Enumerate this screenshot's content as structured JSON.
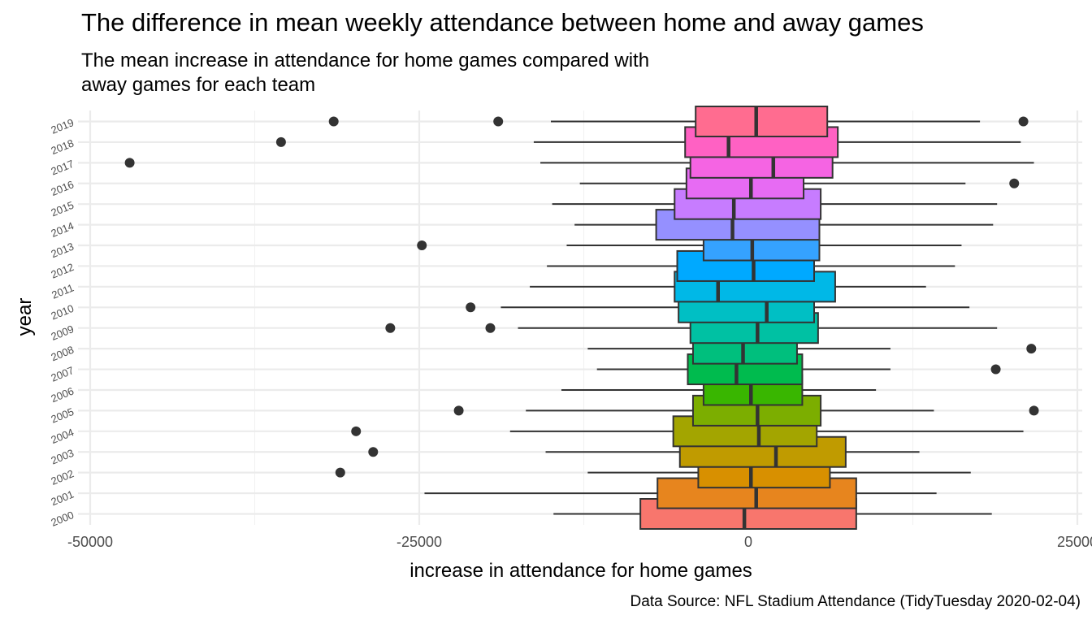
{
  "title": "The difference in mean weekly attendance between home and away games",
  "subtitle": "The mean increase in attendance for home games compared with\n away games for each team",
  "caption": "Data Source: NFL Stadium Attendance (TidyTuesday 2020-02-04)",
  "chart_data": {
    "type": "boxplot",
    "orientation": "horizontal",
    "xlabel": "increase in attendance for home games",
    "ylabel": "year",
    "xlim": [
      -50000,
      25000
    ],
    "x_ticks": [
      -50000,
      -25000,
      0,
      25000
    ],
    "x_tick_labels": [
      "-50000",
      "-25000",
      "0",
      "25000"
    ],
    "grid": true,
    "legend": "none",
    "series": [
      {
        "year": "2000",
        "min": -14800,
        "q1": -8200,
        "median": -300,
        "q3": 8200,
        "max": 18500,
        "outliers": [],
        "color": "#F8766D"
      },
      {
        "year": "2001",
        "min": -24600,
        "q1": -6900,
        "median": 600,
        "q3": 8200,
        "max": 14300,
        "outliers": [],
        "color": "#E7851E"
      },
      {
        "year": "2002",
        "min": -12200,
        "q1": -3800,
        "median": 200,
        "q3": 6200,
        "max": 16900,
        "outliers": [
          -31000
        ],
        "color": "#D89000"
      },
      {
        "year": "2003",
        "min": -15400,
        "q1": -5200,
        "median": 2100,
        "q3": 7400,
        "max": 13000,
        "outliers": [
          -28500
        ],
        "color": "#C09B00"
      },
      {
        "year": "2004",
        "min": -18100,
        "q1": -5700,
        "median": 800,
        "q3": 5200,
        "max": 20900,
        "outliers": [
          -29800
        ],
        "color": "#A3A500"
      },
      {
        "year": "2005",
        "min": -16900,
        "q1": -4200,
        "median": 700,
        "q3": 5500,
        "max": 14100,
        "outliers": [
          -22000,
          21700
        ],
        "color": "#7CAE00"
      },
      {
        "year": "2006",
        "min": -14200,
        "q1": -3400,
        "median": 200,
        "q3": 4100,
        "max": 9700,
        "outliers": [],
        "color": "#39B600"
      },
      {
        "year": "2007",
        "min": -11500,
        "q1": -4600,
        "median": -900,
        "q3": 4100,
        "max": 10800,
        "outliers": [
          18800
        ],
        "color": "#00BB4E"
      },
      {
        "year": "2008",
        "min": -12200,
        "q1": -4200,
        "median": -400,
        "q3": 3700,
        "max": 10800,
        "outliers": [
          21500
        ],
        "color": "#00BF7D"
      },
      {
        "year": "2009",
        "min": -17500,
        "q1": -4400,
        "median": 700,
        "q3": 5300,
        "max": 18900,
        "outliers": [
          -27200,
          -19600
        ],
        "color": "#00C1A3"
      },
      {
        "year": "2010",
        "min": -18800,
        "q1": -5300,
        "median": 1400,
        "q3": 5000,
        "max": 16800,
        "outliers": [
          -21100
        ],
        "color": "#00BFC4"
      },
      {
        "year": "2011",
        "min": -16600,
        "q1": -5600,
        "median": -2300,
        "q3": 6600,
        "max": 13500,
        "outliers": [],
        "color": "#00B8E7"
      },
      {
        "year": "2012",
        "min": -15300,
        "q1": -5400,
        "median": 400,
        "q3": 5000,
        "max": 15700,
        "outliers": [],
        "color": "#00A9FF"
      },
      {
        "year": "2013",
        "min": -13800,
        "q1": -3400,
        "median": 300,
        "q3": 5400,
        "max": 16200,
        "outliers": [
          -24800
        ],
        "color": "#35A2FF"
      },
      {
        "year": "2014",
        "min": -13200,
        "q1": -7000,
        "median": -1200,
        "q3": 5400,
        "max": 18600,
        "outliers": [],
        "color": "#9590FF"
      },
      {
        "year": "2015",
        "min": -14900,
        "q1": -5600,
        "median": -1100,
        "q3": 5500,
        "max": 18900,
        "outliers": [],
        "color": "#C77CFF"
      },
      {
        "year": "2016",
        "min": -12800,
        "q1": -4700,
        "median": 200,
        "q3": 4200,
        "max": 16500,
        "outliers": [
          20200
        ],
        "color": "#E76BF3"
      },
      {
        "year": "2017",
        "min": -15800,
        "q1": -4400,
        "median": 1900,
        "q3": 6400,
        "max": 21700,
        "outliers": [
          -47000
        ],
        "color": "#F564E3"
      },
      {
        "year": "2018",
        "min": -16300,
        "q1": -4800,
        "median": -1500,
        "q3": 6800,
        "max": 20700,
        "outliers": [
          -35500
        ],
        "color": "#FF61C3"
      },
      {
        "year": "2019",
        "min": -15000,
        "q1": -4000,
        "median": 600,
        "q3": 6000,
        "max": 17600,
        "outliers": [
          -31500,
          -19000,
          20900
        ],
        "color": "#FF6C90"
      }
    ]
  }
}
